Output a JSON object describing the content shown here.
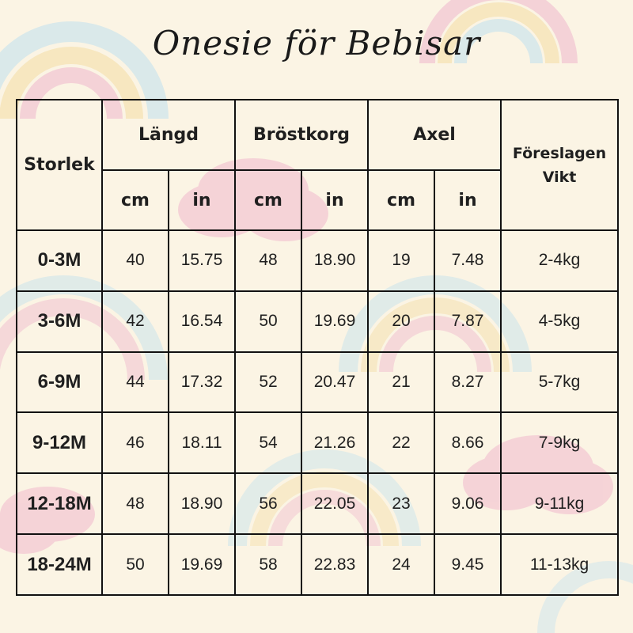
{
  "title": "Onesie för Bebisar",
  "headers": {
    "size": "Storlek",
    "length": "Längd",
    "chest": "Bröstkorg",
    "shoulder": "Axel",
    "weight_line1": "Föreslagen",
    "weight_line2": "Vikt",
    "cm": "cm",
    "in": "in"
  },
  "rows": [
    {
      "size": "0-3M",
      "length_cm": "40",
      "length_in": "15.75",
      "chest_cm": "48",
      "chest_in": "18.90",
      "shoulder_cm": "19",
      "shoulder_in": "7.48",
      "weight": "2-4kg"
    },
    {
      "size": "3-6M",
      "length_cm": "42",
      "length_in": "16.54",
      "chest_cm": "50",
      "chest_in": "19.69",
      "shoulder_cm": "20",
      "shoulder_in": "7.87",
      "weight": "4-5kg"
    },
    {
      "size": "6-9M",
      "length_cm": "44",
      "length_in": "17.32",
      "chest_cm": "52",
      "chest_in": "20.47",
      "shoulder_cm": "21",
      "shoulder_in": "8.27",
      "weight": "5-7kg"
    },
    {
      "size": "9-12M",
      "length_cm": "46",
      "length_in": "18.11",
      "chest_cm": "54",
      "chest_in": "21.26",
      "shoulder_cm": "22",
      "shoulder_in": "8.66",
      "weight": "7-9kg"
    },
    {
      "size": "12-18M",
      "length_cm": "48",
      "length_in": "18.90",
      "chest_cm": "56",
      "chest_in": "22.05",
      "shoulder_cm": "23",
      "shoulder_in": "9.06",
      "weight": "9-11kg"
    },
    {
      "size": "18-24M",
      "length_cm": "50",
      "length_in": "19.69",
      "chest_cm": "58",
      "chest_in": "22.83",
      "shoulder_cm": "24",
      "shoulder_in": "9.45",
      "weight": "11-13kg"
    }
  ],
  "colors": {
    "background": "#fbf4e4",
    "rainbow_pink": "#f2c7d3",
    "rainbow_yellow": "#f6e3b4",
    "rainbow_blue": "#cfe6ec",
    "cloud_pink": "#f3c6d2",
    "lines": "#111111"
  }
}
